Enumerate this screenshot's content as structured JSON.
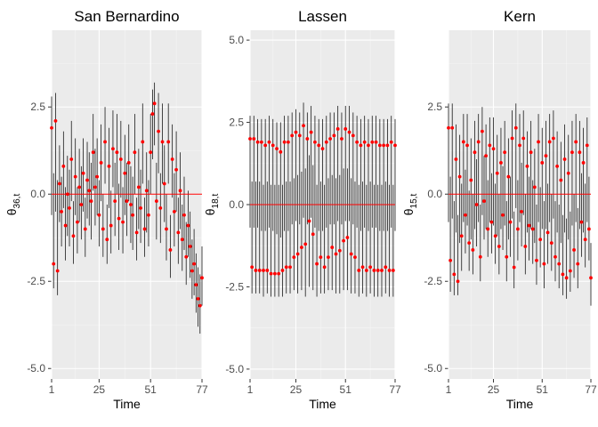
{
  "chart_data": [
    {
      "type": "scatter",
      "title": "San Bernardino",
      "xlabel": "Time",
      "ylabel": {
        "base": "θ",
        "sub": "36",
        "tail": ",t"
      },
      "xlim": [
        1,
        77
      ],
      "ylim": [
        -5.3,
        4.7
      ],
      "x_ticks": [
        1,
        25,
        51,
        77
      ],
      "y_ticks": [
        -5.0,
        -2.5,
        0.0,
        2.5
      ],
      "y_tick_labels": [
        "-5.0",
        "-2.5",
        "0.0",
        "2.5"
      ],
      "reference_line": 0,
      "estimate_color": "#ff0000",
      "interval_color": "#1a1a1a",
      "x": [
        1,
        2,
        3,
        4,
        5,
        6,
        7,
        8,
        9,
        10,
        11,
        12,
        13,
        14,
        15,
        16,
        17,
        18,
        19,
        20,
        21,
        22,
        23,
        24,
        25,
        26,
        27,
        28,
        29,
        30,
        31,
        32,
        33,
        34,
        35,
        36,
        37,
        38,
        39,
        40,
        41,
        42,
        43,
        44,
        45,
        46,
        47,
        48,
        49,
        50,
        51,
        52,
        53,
        54,
        55,
        56,
        57,
        58,
        59,
        60,
        61,
        62,
        63,
        64,
        65,
        66,
        67,
        68,
        69,
        70,
        71,
        72,
        73,
        74,
        75,
        76,
        77
      ],
      "estimate": [
        1.9,
        -2.0,
        2.1,
        -2.2,
        0.3,
        -0.5,
        0.8,
        -0.9,
        0.0,
        -0.4,
        1.0,
        -1.2,
        0.5,
        -0.8,
        0.2,
        -0.3,
        0.6,
        -1.0,
        0.4,
        0.1,
        -0.2,
        1.2,
        0.2,
        0.5,
        -0.6,
        0.9,
        -1.0,
        1.5,
        -1.3,
        0.8,
        -0.9,
        1.3,
        -0.2,
        1.2,
        -0.7,
        1.0,
        -0.8,
        0.6,
        -0.2,
        0.9,
        -0.3,
        -0.6,
        1.2,
        -1.1,
        0.2,
        -0.4,
        1.5,
        -1.0,
        0.1,
        -0.6,
        1.2,
        2.3,
        2.6,
        -0.2,
        1.8,
        -0.4,
        1.5,
        0.3,
        -1.0,
        1.5,
        -1.6,
        1.0,
        -0.5,
        0.7,
        -1.1,
        0.1,
        -1.3,
        -0.6,
        -1.8,
        -0.9,
        -1.5,
        -2.2,
        -2.0,
        -2.6,
        -3.0,
        -3.2,
        -2.4
      ],
      "lower": [
        -0.6,
        -2.7,
        -0.5,
        -2.9,
        -0.8,
        -1.5,
        -0.4,
        -1.9,
        -1.2,
        -1.5,
        -0.2,
        -2.0,
        -0.6,
        -1.7,
        -0.8,
        -1.3,
        -0.5,
        -1.8,
        -0.7,
        -0.9,
        -1.3,
        0.1,
        -0.9,
        -0.6,
        -1.5,
        -0.2,
        -1.8,
        0.3,
        -2.0,
        -0.4,
        -1.7,
        0.2,
        -1.2,
        0.0,
        -1.6,
        -0.1,
        -1.7,
        -0.6,
        -1.2,
        -0.2,
        -1.4,
        -1.6,
        0.0,
        -1.9,
        -1.0,
        -1.4,
        0.3,
        -1.8,
        -1.1,
        -1.5,
        0.0,
        1.0,
        1.4,
        -1.3,
        0.6,
        -1.4,
        0.3,
        -0.8,
        -1.9,
        0.3,
        -2.4,
        -0.1,
        -1.5,
        -0.5,
        -2.0,
        -1.0,
        -2.2,
        -1.6,
        -2.6,
        -1.8,
        -2.4,
        -3.0,
        -2.9,
        -3.4,
        -3.8,
        -4.0,
        -3.2
      ],
      "upper": [
        2.8,
        0.6,
        2.9,
        0.4,
        1.4,
        0.5,
        1.8,
        0.2,
        1.1,
        0.7,
        2.1,
        -0.2,
        1.6,
        0.2,
        1.3,
        0.8,
        1.6,
        -0.1,
        1.5,
        1.2,
        0.9,
        2.3,
        1.3,
        1.6,
        0.4,
        2.0,
        0.0,
        2.5,
        -0.3,
        1.9,
        0.1,
        2.4,
        0.9,
        2.3,
        0.3,
        2.1,
        0.2,
        1.7,
        0.9,
        2.0,
        0.8,
        0.5,
        2.3,
        -0.1,
        1.3,
        0.7,
        2.6,
        -0.1,
        1.2,
        0.4,
        2.3,
        3.0,
        3.2,
        0.9,
        2.9,
        0.6,
        2.6,
        1.4,
        0.0,
        2.6,
        -0.6,
        2.0,
        0.6,
        1.8,
        -0.1,
        1.2,
        -0.3,
        0.5,
        -0.8,
        0.1,
        -0.5,
        -1.3,
        -1.0,
        -1.7,
        -2.1,
        -2.3,
        -1.5
      ]
    },
    {
      "type": "scatter",
      "title": "Lassen",
      "xlabel": "Time",
      "ylabel": {
        "base": "θ",
        "sub": "18",
        "tail": ",t"
      },
      "xlim": [
        1,
        77
      ],
      "ylim": [
        -5.3,
        5.3
      ],
      "x_ticks": [
        1,
        25,
        51,
        77
      ],
      "y_ticks": [
        -5.0,
        -2.5,
        0.0,
        2.5,
        5.0
      ],
      "y_tick_labels": [
        "-5.0",
        "-2.5",
        "0.0",
        "2.5",
        "5.0"
      ],
      "reference_line": 0,
      "estimate_color": "#ff0000",
      "interval_color": "#1a1a1a",
      "x": [
        1,
        2,
        3,
        4,
        5,
        6,
        7,
        8,
        9,
        10,
        11,
        12,
        13,
        14,
        15,
        16,
        17,
        18,
        19,
        20,
        21,
        22,
        23,
        24,
        25,
        26,
        27,
        28,
        29,
        30,
        31,
        32,
        33,
        34,
        35,
        36,
        37,
        38,
        39,
        40,
        41,
        42,
        43,
        44,
        45,
        46,
        47,
        48,
        49,
        50,
        51,
        52,
        53,
        54,
        55,
        56,
        57,
        58,
        59,
        60,
        61,
        62,
        63,
        64,
        65,
        66,
        67,
        68,
        69,
        70,
        71,
        72,
        73,
        74,
        75,
        76,
        77
      ],
      "estimate": [
        2.0,
        -1.9,
        2.0,
        -2.0,
        1.9,
        -2.0,
        1.9,
        -2.0,
        1.8,
        -2.0,
        1.9,
        -2.1,
        1.8,
        -2.1,
        1.7,
        -2.1,
        1.6,
        -2.0,
        1.9,
        -1.9,
        1.9,
        -1.9,
        2.1,
        -1.6,
        2.2,
        -1.5,
        2.1,
        -1.3,
        2.4,
        -1.2,
        2.0,
        -0.5,
        2.2,
        -0.9,
        1.9,
        -1.8,
        1.8,
        -1.6,
        1.7,
        -1.9,
        1.9,
        -1.6,
        2.0,
        -1.3,
        2.1,
        -1.5,
        2.3,
        -1.4,
        2.0,
        -1.1,
        2.3,
        -1.0,
        2.2,
        -1.5,
        2.1,
        -1.6,
        1.9,
        -2.0,
        1.8,
        -1.9,
        1.9,
        -2.0,
        1.8,
        -1.9,
        1.9,
        -2.0,
        1.9,
        -2.0,
        1.8,
        -2.0,
        1.8,
        -1.9,
        1.8,
        -2.0,
        1.9,
        -2.0,
        1.8
      ],
      "lower": [
        -0.7,
        -2.7,
        -0.7,
        -2.7,
        -0.7,
        -2.7,
        -0.8,
        -2.8,
        -0.8,
        -2.7,
        -0.7,
        -2.8,
        -0.8,
        -2.8,
        -0.9,
        -2.8,
        -1.0,
        -2.8,
        -0.8,
        -2.7,
        -0.8,
        -2.7,
        -0.6,
        -2.6,
        -0.5,
        -2.7,
        -0.6,
        -2.6,
        -0.4,
        -2.8,
        -0.6,
        -2.5,
        -0.4,
        -2.6,
        -0.7,
        -2.8,
        -0.8,
        -2.7,
        -0.8,
        -2.7,
        -0.7,
        -2.6,
        -0.6,
        -2.6,
        -0.6,
        -2.7,
        -0.5,
        -2.7,
        -0.6,
        -2.6,
        -0.5,
        -2.6,
        -0.5,
        -2.7,
        -0.6,
        -2.7,
        -0.7,
        -2.8,
        -0.8,
        -2.7,
        -0.7,
        -2.8,
        -0.8,
        -2.7,
        -0.7,
        -2.8,
        -0.7,
        -2.8,
        -0.8,
        -2.8,
        -0.8,
        -2.7,
        -0.8,
        -2.8,
        -0.7,
        -2.8,
        -0.8
      ],
      "upper": [
        2.7,
        0.7,
        2.7,
        0.7,
        2.6,
        0.7,
        2.6,
        0.6,
        2.6,
        0.7,
        2.7,
        0.6,
        2.6,
        0.6,
        2.5,
        0.6,
        2.5,
        0.6,
        2.7,
        0.7,
        2.7,
        0.7,
        2.8,
        0.8,
        2.9,
        0.9,
        2.8,
        1.0,
        3.1,
        1.1,
        2.8,
        1.5,
        3.0,
        1.2,
        2.7,
        0.6,
        2.6,
        0.7,
        2.6,
        0.6,
        2.7,
        0.8,
        2.8,
        0.9,
        2.8,
        0.8,
        3.0,
        0.9,
        2.8,
        1.1,
        3.0,
        1.1,
        3.0,
        0.8,
        2.8,
        0.7,
        2.7,
        0.6,
        2.6,
        0.7,
        2.7,
        0.6,
        2.6,
        0.7,
        2.7,
        0.6,
        2.7,
        0.6,
        2.6,
        0.6,
        2.6,
        0.7,
        2.6,
        0.6,
        2.7,
        0.6,
        2.6
      ]
    },
    {
      "type": "scatter",
      "title": "Kern",
      "xlabel": "Time",
      "ylabel": {
        "base": "θ",
        "sub": "15",
        "tail": ",t"
      },
      "xlim": [
        1,
        77
      ],
      "ylim": [
        -5.3,
        4.7
      ],
      "x_ticks": [
        1,
        25,
        51,
        77
      ],
      "y_ticks": [
        -5.0,
        -2.5,
        0.0,
        2.5
      ],
      "y_tick_labels": [
        "-5.0",
        "-2.5",
        "0.0",
        "2.5"
      ],
      "reference_line": 0,
      "estimate_color": "#ff0000",
      "interval_color": "#1a1a1a",
      "x": [
        1,
        2,
        3,
        4,
        5,
        6,
        7,
        8,
        9,
        10,
        11,
        12,
        13,
        14,
        15,
        16,
        17,
        18,
        19,
        20,
        21,
        22,
        23,
        24,
        25,
        26,
        27,
        28,
        29,
        30,
        31,
        32,
        33,
        34,
        35,
        36,
        37,
        38,
        39,
        40,
        41,
        42,
        43,
        44,
        45,
        46,
        47,
        48,
        49,
        50,
        51,
        52,
        53,
        54,
        55,
        56,
        57,
        58,
        59,
        60,
        61,
        62,
        63,
        64,
        65,
        66,
        67,
        68,
        69,
        70,
        71,
        72,
        73,
        74,
        75,
        76,
        77
      ],
      "estimate": [
        1.9,
        -1.9,
        1.9,
        -2.3,
        1.0,
        -2.5,
        0.5,
        -1.2,
        1.5,
        -0.6,
        1.4,
        -1.4,
        0.4,
        -1.6,
        1.2,
        -0.3,
        1.5,
        -1.8,
        1.8,
        -0.2,
        1.1,
        -1.0,
        1.4,
        -0.8,
        1.3,
        -1.2,
        0.6,
        -1.5,
        0.9,
        -0.6,
        1.2,
        -1.8,
        0.5,
        -0.8,
        1.6,
        -2.1,
        1.9,
        -1.0,
        1.4,
        -0.5,
        1.6,
        -1.5,
        0.8,
        -0.9,
        1.2,
        -1.0,
        0.2,
        -1.9,
        1.5,
        -1.3,
        0.9,
        -2.0,
        1.1,
        -1.1,
        1.5,
        -1.4,
        1.6,
        -1.8,
        0.8,
        -2.0,
        0.4,
        -2.3,
        1.0,
        -2.4,
        0.6,
        -2.2,
        1.2,
        -1.6,
        1.5,
        -2.0,
        1.2,
        -0.8,
        0.9,
        -1.3,
        1.4,
        -1.0,
        -2.4
      ],
      "lower": [
        -0.8,
        -2.8,
        -0.7,
        -2.9,
        -1.1,
        -2.9,
        -1.4,
        -2.2,
        -0.8,
        -1.7,
        -0.9,
        -2.2,
        -1.3,
        -2.3,
        -1.0,
        -1.5,
        -0.8,
        -2.5,
        -0.6,
        -1.3,
        -1.0,
        -1.8,
        -0.8,
        -1.7,
        -0.9,
        -2.0,
        -1.2,
        -2.3,
        -1.0,
        -1.6,
        -0.9,
        -2.5,
        -1.3,
        -1.8,
        -0.7,
        -2.7,
        -0.4,
        -1.9,
        -0.8,
        -1.5,
        -0.6,
        -2.3,
        -1.1,
        -1.9,
        -1.0,
        -2.0,
        -1.4,
        -2.6,
        -0.8,
        -2.1,
        -1.0,
        -2.7,
        -1.0,
        -2.0,
        -0.8,
        -2.2,
        -0.7,
        -2.5,
        -1.1,
        -2.7,
        -1.4,
        -2.9,
        -1.1,
        -3.0,
        -1.3,
        -2.8,
        -0.9,
        -2.4,
        -0.8,
        -2.7,
        -1.0,
        -1.8,
        -1.1,
        -2.1,
        -0.8,
        -1.9,
        -3.2
      ],
      "upper": [
        2.6,
        0.5,
        2.6,
        -0.2,
        2.0,
        -0.6,
        1.7,
        0.3,
        2.3,
        0.7,
        2.3,
        0.1,
        1.6,
        0.0,
        2.1,
        1.0,
        2.3,
        -0.3,
        2.5,
        1.1,
        2.0,
        0.4,
        2.2,
        0.6,
        2.2,
        0.3,
        1.7,
        0.0,
        1.9,
        0.8,
        2.1,
        -0.2,
        1.6,
        0.5,
        2.4,
        -0.5,
        2.6,
        0.4,
        2.3,
        0.9,
        2.4,
        0.0,
        1.8,
        0.5,
        2.1,
        0.4,
        1.3,
        -0.3,
        2.3,
        0.2,
        1.9,
        -0.2,
        2.1,
        0.3,
        2.3,
        0.0,
        2.4,
        -0.2,
        1.8,
        -0.3,
        1.5,
        -0.6,
        2.0,
        -0.7,
        1.7,
        -0.5,
        2.1,
        0.0,
        2.3,
        -0.4,
        2.1,
        0.6,
        1.9,
        0.3,
        2.2,
        0.5,
        -1.4
      ]
    }
  ]
}
